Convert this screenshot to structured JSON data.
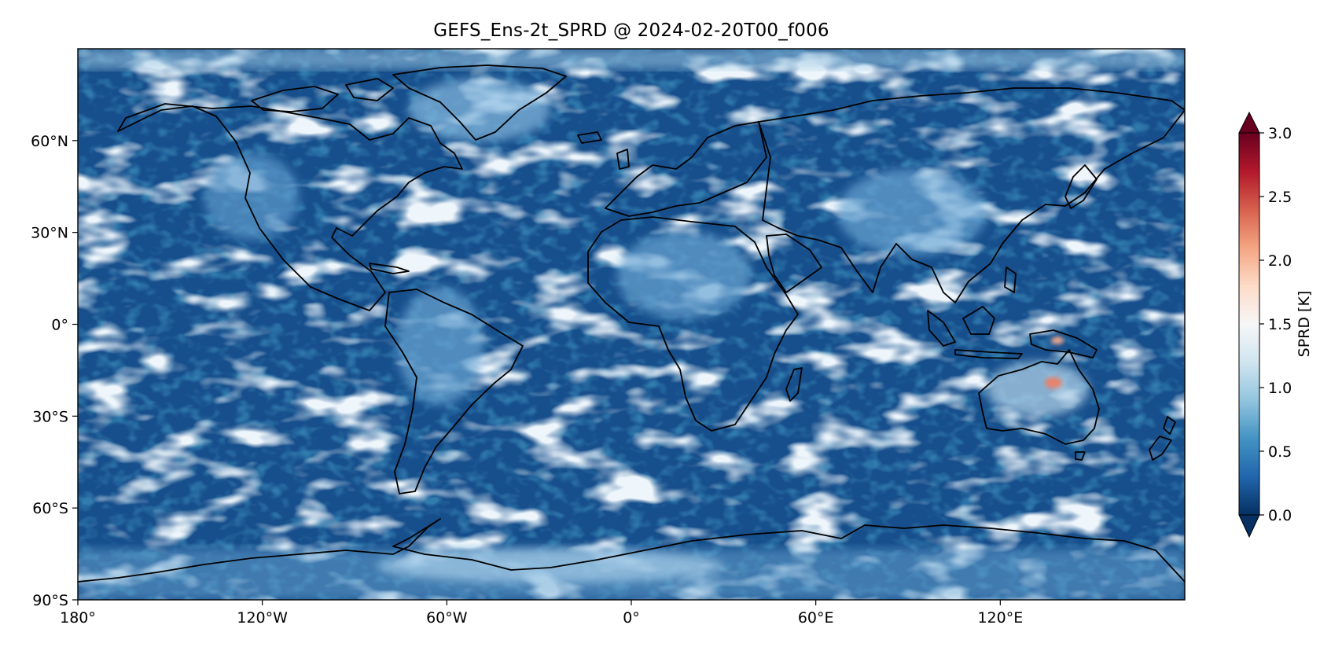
{
  "title": "GEFS_Ens-2t_SPRD @ 2024-02-20T00_f006",
  "map": {
    "projection": "PlateCarree",
    "field": "2m temperature ensemble spread",
    "lon_range": [
      -180,
      180
    ],
    "lat_range": [
      -90,
      90
    ],
    "x_ticks": [
      {
        "lon": -180,
        "label": "180°"
      },
      {
        "lon": -120,
        "label": "120°W"
      },
      {
        "lon": -60,
        "label": "60°W"
      },
      {
        "lon": 0,
        "label": "0°"
      },
      {
        "lon": 60,
        "label": "60°E"
      },
      {
        "lon": 120,
        "label": "120°E"
      }
    ],
    "y_ticks": [
      {
        "lat": 60,
        "label": "60°N"
      },
      {
        "lat": 30,
        "label": "30°N"
      },
      {
        "lat": 0,
        "label": "0°"
      },
      {
        "lat": -30,
        "label": "30°S"
      },
      {
        "lat": -60,
        "label": "60°S"
      },
      {
        "lat": -90,
        "label": "90°S"
      }
    ],
    "hotspots": [
      {
        "name": "central Australia",
        "lon": 133,
        "lat": -20,
        "value": 2.3
      },
      {
        "name": "New Guinea",
        "lon": 137,
        "lat": -5,
        "value": 2.2
      }
    ]
  },
  "colorbar": {
    "label": "SPRD [K]",
    "min": 0.0,
    "max": 3.0,
    "extend": "both",
    "cmap": "RdBu_r",
    "ticks": [
      {
        "value": 0.0,
        "label": "0.0"
      },
      {
        "value": 0.5,
        "label": "0.5"
      },
      {
        "value": 1.0,
        "label": "1.0"
      },
      {
        "value": 1.5,
        "label": "1.5"
      },
      {
        "value": 2.0,
        "label": "2.0"
      },
      {
        "value": 2.5,
        "label": "2.5"
      },
      {
        "value": 3.0,
        "label": "3.0"
      }
    ],
    "colors": {
      "low_dark": "#053061",
      "low": "#2166ac",
      "mid_low": "#4393c3",
      "light_blue": "#92c5de",
      "pale_blue": "#d1e5f0",
      "white": "#f7f7f7",
      "pale_red": "#fddbc7",
      "light_red": "#f4a582",
      "red": "#d6604d",
      "dark_red": "#b2182b",
      "high_dark": "#67001f"
    }
  }
}
